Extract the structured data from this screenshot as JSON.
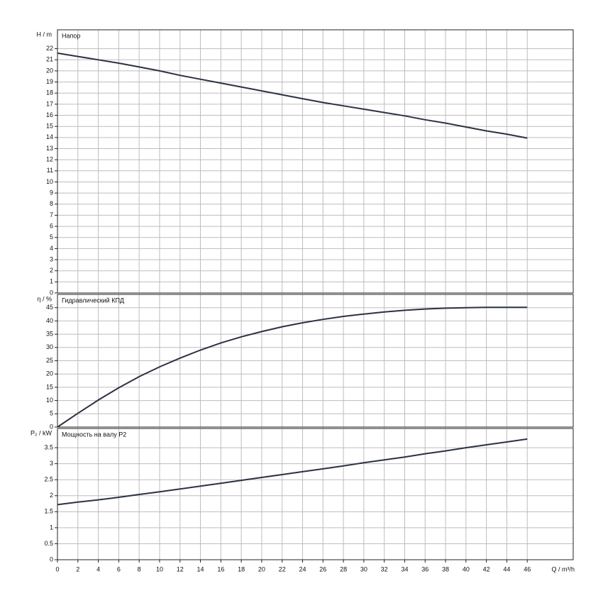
{
  "chart_data": [
    {
      "type": "line",
      "y_label": "H / m",
      "title": "Напор",
      "x": [
        0,
        2,
        4,
        6,
        8,
        10,
        12,
        14,
        16,
        18,
        20,
        22,
        24,
        26,
        28,
        30,
        32,
        34,
        36,
        38,
        40,
        42,
        44,
        46
      ],
      "series": [
        {
          "color": "#2b3242",
          "values": [
            21.6,
            21.3,
            21.0,
            20.7,
            20.35,
            20.0,
            19.6,
            19.25,
            18.9,
            18.55,
            18.2,
            17.85,
            17.5,
            17.15,
            16.85,
            16.55,
            16.25,
            15.95,
            15.6,
            15.3,
            14.95,
            14.6,
            14.3,
            13.95
          ]
        }
      ],
      "xlim": [
        0,
        50.5
      ],
      "xticks": [
        0,
        2,
        4,
        6,
        8,
        10,
        12,
        14,
        16,
        18,
        20,
        22,
        24,
        26,
        28,
        30,
        32,
        34,
        36,
        38,
        40,
        42,
        44,
        46
      ],
      "ylim": [
        0,
        23.7
      ],
      "yticks": [
        0,
        1,
        2,
        3,
        4,
        5,
        6,
        7,
        8,
        9,
        10,
        11,
        12,
        13,
        14,
        15,
        16,
        17,
        18,
        19,
        20,
        21,
        22
      ],
      "grid": true
    },
    {
      "type": "line",
      "y_label": "η / %",
      "title": "Гидравлический КПД",
      "x": [
        0,
        2,
        4,
        6,
        8,
        10,
        12,
        14,
        16,
        18,
        20,
        22,
        24,
        26,
        28,
        30,
        32,
        34,
        36,
        38,
        40,
        42,
        44,
        46
      ],
      "series": [
        {
          "color": "#2b3242",
          "values": [
            0,
            5.2,
            10.2,
            14.8,
            19,
            22.7,
            26,
            29,
            31.7,
            34,
            36,
            37.8,
            39.3,
            40.6,
            41.7,
            42.6,
            43.4,
            44,
            44.5,
            44.8,
            45,
            45.1,
            45.1,
            45.1
          ]
        }
      ],
      "xlim": [
        0,
        50.5
      ],
      "xticks": [
        0,
        2,
        4,
        6,
        8,
        10,
        12,
        14,
        16,
        18,
        20,
        22,
        24,
        26,
        28,
        30,
        32,
        34,
        36,
        38,
        40,
        42,
        44,
        46
      ],
      "ylim": [
        0,
        50
      ],
      "yticks": [
        0,
        5,
        10,
        15,
        20,
        25,
        30,
        35,
        40,
        45
      ],
      "grid": true
    },
    {
      "type": "line",
      "y_label": "P₂ / kW",
      "title": "Мощность на валу P2",
      "x_label": "Q / m³/h",
      "x": [
        0,
        2,
        4,
        6,
        8,
        10,
        12,
        14,
        16,
        18,
        20,
        22,
        24,
        26,
        28,
        30,
        32,
        34,
        36,
        38,
        40,
        42,
        44,
        46
      ],
      "series": [
        {
          "color": "#2b3242",
          "values": [
            1.72,
            1.8,
            1.87,
            1.95,
            2.04,
            2.12,
            2.21,
            2.3,
            2.39,
            2.48,
            2.57,
            2.66,
            2.75,
            2.84,
            2.93,
            3.03,
            3.12,
            3.21,
            3.31,
            3.4,
            3.5,
            3.59,
            3.68,
            3.77
          ]
        }
      ],
      "xlim": [
        0,
        50.5
      ],
      "xticks": [
        0,
        2,
        4,
        6,
        8,
        10,
        12,
        14,
        16,
        18,
        20,
        22,
        24,
        26,
        28,
        30,
        32,
        34,
        36,
        38,
        40,
        42,
        44,
        46
      ],
      "ylim": [
        0,
        4.1
      ],
      "yticks": [
        0,
        0.5,
        1,
        1.5,
        2,
        2.5,
        3,
        3.5
      ],
      "grid": true
    }
  ]
}
